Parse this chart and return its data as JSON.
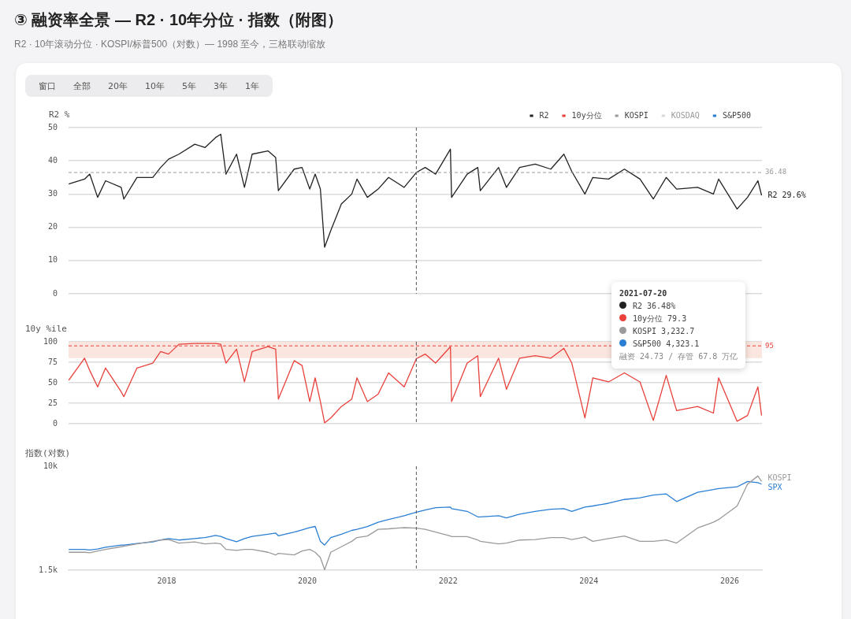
{
  "chart_data": [
    {
      "type": "other",
      "title": "③ 融资率全景 — R2 · 10年分位 · 指数（附图）",
      "subtitle": "R2 · 10年滚动分位 · KOSPI/标普500（对数）— 1998 至今，三格联动缩放",
      "annotations": [
        "窗口",
        "全部",
        "20年",
        "10年",
        "5年",
        "3年",
        "1年"
      ]
    },
    {
      "type": "line",
      "ylabel": "R2 %",
      "x": [
        "2016-08-11",
        "2016-11-01",
        "2016-11-28",
        "2017-01-08",
        "2017-02-18",
        "2017-05-10",
        "2017-05-24",
        "2017-07-31",
        "2017-10-21",
        "2017-12-01",
        "2018-01-11",
        "2018-03-06",
        "2018-05-27",
        "2018-07-20",
        "2018-09-12",
        "2018-10-09",
        "2018-11-05",
        "2018-12-30",
        "2019-02-09",
        "2019-03-21",
        "2019-06-11",
        "2019-07-21",
        "2019-08-04",
        "2019-10-25",
        "2019-12-05",
        "2020-01-14",
        "2020-02-11",
        "2020-03-09",
        "2020-03-31",
        "2020-05-02",
        "2020-06-26",
        "2020-08-19",
        "2020-09-15",
        "2020-11-08",
        "2021-01-03",
        "2021-02-26",
        "2021-05-18",
        "2021-07-20",
        "2021-09-04",
        "2021-10-28",
        "2022-01-13",
        "2022-01-19",
        "2022-04-10",
        "2022-06-04",
        "2022-06-17",
        "2022-09-20",
        "2022-10-31",
        "2023-01-07",
        "2023-03-29",
        "2023-06-18",
        "2023-08-25",
        "2023-10-05",
        "2023-12-12",
        "2024-01-22",
        "2024-04-13",
        "2024-07-04",
        "2024-09-23",
        "2024-12-01",
        "2025-02-06",
        "2025-04-01",
        "2025-07-19",
        "2025-10-09",
        "2025-11-05",
        "2026-02-09",
        "2026-04-04",
        "2026-05-28",
        "2026-06-16"
      ],
      "series": [
        {
          "name": "R2",
          "color": "#222222",
          "values": [
            33,
            34.5,
            36,
            29,
            34,
            32,
            28.5,
            35,
            35,
            38,
            40.5,
            42,
            45,
            44,
            47,
            48,
            36,
            42,
            32,
            42,
            43,
            41,
            31,
            37.5,
            38,
            31.5,
            36,
            31.5,
            14,
            19,
            27,
            30,
            34.5,
            29,
            31.5,
            35,
            32,
            36.48,
            38,
            36,
            43.5,
            29,
            36,
            38,
            31,
            38,
            32,
            38,
            39,
            37.5,
            42,
            36.8,
            30,
            35,
            34.5,
            37.5,
            34.5,
            28.5,
            35,
            31.5,
            32,
            30,
            34.5,
            25.5,
            29,
            34,
            29.6
          ]
        }
      ],
      "xlim": [
        "2016-08-10",
        "2026-06-18"
      ],
      "xticks": [
        "2018",
        "2020",
        "2022",
        "2024",
        "2026"
      ],
      "ylim": [
        0,
        50
      ],
      "yticks": [
        0,
        10,
        20,
        30,
        40,
        50
      ],
      "grid": "y",
      "legend": "top right",
      "line_style": "solid",
      "tick_labels": "y",
      "ref_lines": [
        {
          "axis": "x",
          "value": "2021-07-20",
          "color": "#555555",
          "line_style": "dashed"
        },
        {
          "axis": "y",
          "value": 36.48,
          "label": "36.48",
          "color": "#999999",
          "line_style": "dashed"
        }
      ],
      "annotations": [
        "2021-07-20",
        "R2 36.48%",
        "10y分位 79.3",
        "KOSPI 3,232.7",
        "S&P500 4,323.1",
        "融资 24.73 / 存管 67.8 万亿",
        {
          "text": "R2 29.6%",
          "x": "2026-06-16",
          "y": 29.6
        }
      ]
    },
    {
      "type": "line",
      "ylabel": "10y %ile",
      "x": [
        "2016-08-11",
        "2016-11-01",
        "2016-11-28",
        "2017-01-08",
        "2017-02-18",
        "2017-05-10",
        "2017-05-24",
        "2017-07-31",
        "2017-10-21",
        "2017-12-01",
        "2018-01-11",
        "2018-03-06",
        "2018-05-27",
        "2018-07-20",
        "2018-09-12",
        "2018-10-09",
        "2018-11-05",
        "2018-12-30",
        "2019-02-09",
        "2019-03-21",
        "2019-06-11",
        "2019-07-21",
        "2019-08-04",
        "2019-10-25",
        "2019-12-05",
        "2020-01-14",
        "2020-02-11",
        "2020-03-09",
        "2020-03-31",
        "2020-05-02",
        "2020-06-26",
        "2020-08-19",
        "2020-09-15",
        "2020-11-08",
        "2021-01-03",
        "2021-02-26",
        "2021-05-18",
        "2021-07-20",
        "2021-09-04",
        "2021-10-28",
        "2022-01-13",
        "2022-01-19",
        "2022-04-10",
        "2022-06-04",
        "2022-06-17",
        "2022-09-20",
        "2022-10-31",
        "2023-01-07",
        "2023-03-29",
        "2023-06-18",
        "2023-08-25",
        "2023-10-05",
        "2023-12-12",
        "2024-01-22",
        "2024-04-13",
        "2024-07-04",
        "2024-09-23",
        "2024-12-01",
        "2025-02-06",
        "2025-04-01",
        "2025-07-19",
        "2025-10-09",
        "2025-11-05",
        "2026-02-09",
        "2026-04-04",
        "2026-05-28",
        "2026-06-16"
      ],
      "series": [
        {
          "name": "10y分位",
          "color": "#e8413c",
          "values": [
            53,
            80,
            65,
            45,
            68,
            39,
            33,
            68,
            74,
            88,
            85,
            97,
            98,
            98,
            98,
            97,
            74,
            91,
            51,
            88,
            94,
            91,
            30,
            77,
            71,
            27,
            56,
            27,
            1,
            7,
            21,
            30,
            56,
            27,
            36,
            62,
            45,
            79.3,
            85,
            74,
            94,
            27,
            74,
            83,
            33,
            80,
            42,
            80,
            83,
            80,
            92,
            74,
            7,
            56,
            51,
            62,
            51,
            4,
            59,
            16,
            21,
            13,
            56,
            3,
            10,
            45,
            10
          ]
        }
      ],
      "xlim": [
        "2016-08-10",
        "2026-06-18"
      ],
      "xticks": [
        "2018",
        "2020",
        "2022",
        "2024",
        "2026"
      ],
      "ylim": [
        0,
        100
      ],
      "yticks": [
        0,
        25,
        50,
        75,
        100
      ],
      "grid": "y",
      "line_style": "solid",
      "tick_labels": "y",
      "ref_lines": [
        {
          "axis": "x",
          "value": "2021-07-20",
          "color": "#555555",
          "line_style": "dashed"
        },
        {
          "axis": "y",
          "value": 95,
          "label": "95",
          "color": "#e8413c",
          "line_style": "dashed"
        }
      ],
      "bands": [
        {
          "axis": "y",
          "from": 80,
          "to": 100,
          "color": "#fbe6df"
        }
      ]
    },
    {
      "type": "line",
      "ylabel": "指数(对数)",
      "x": [
        "2016-08-11",
        "2016-11-01",
        "2016-11-28",
        "2017-01-08",
        "2017-02-18",
        "2017-05-10",
        "2017-05-24",
        "2017-07-31",
        "2017-10-21",
        "2017-12-01",
        "2018-01-11",
        "2018-03-06",
        "2018-05-27",
        "2018-07-20",
        "2018-09-12",
        "2018-10-09",
        "2018-11-05",
        "2018-12-30",
        "2019-02-09",
        "2019-03-21",
        "2019-06-11",
        "2019-07-21",
        "2019-08-04",
        "2019-10-25",
        "2019-12-05",
        "2020-01-14",
        "2020-02-11",
        "2020-03-09",
        "2020-03-31",
        "2020-05-02",
        "2020-06-26",
        "2020-08-19",
        "2020-09-15",
        "2020-11-08",
        "2021-01-03",
        "2021-02-26",
        "2021-05-18",
        "2021-07-20",
        "2021-09-04",
        "2021-10-28",
        "2022-01-13",
        "2022-01-19",
        "2022-04-10",
        "2022-06-04",
        "2022-06-17",
        "2022-09-20",
        "2022-10-31",
        "2023-01-07",
        "2023-03-29",
        "2023-06-18",
        "2023-08-25",
        "2023-10-05",
        "2023-12-12",
        "2024-01-22",
        "2024-04-13",
        "2024-07-04",
        "2024-09-23",
        "2024-12-01",
        "2025-02-06",
        "2025-04-01",
        "2025-07-19",
        "2025-10-09",
        "2025-11-05",
        "2026-02-09",
        "2026-04-04",
        "2026-05-28",
        "2026-06-16"
      ],
      "series": [
        {
          "name": "KOSPI",
          "color": "#9a9a9a",
          "values": [
            2080,
            2080,
            2060,
            2130,
            2190,
            2300,
            2320,
            2420,
            2540,
            2600,
            2620,
            2460,
            2510,
            2420,
            2460,
            2420,
            2190,
            2150,
            2190,
            2190,
            2080,
            1980,
            2040,
            1980,
            2130,
            2190,
            2080,
            1890,
            1510,
            2080,
            2300,
            2540,
            2720,
            2800,
            3160,
            3190,
            3260,
            3232.7,
            3160,
            3010,
            2800,
            2770,
            2770,
            2600,
            2540,
            2420,
            2460,
            2600,
            2620,
            2720,
            2720,
            2620,
            2750,
            2540,
            2670,
            2800,
            2540,
            2540,
            2600,
            2460,
            3240,
            3600,
            3780,
            4840,
            7210,
            8370,
            7570
          ]
        },
        {
          "name": "KOSDAQ",
          "color": "#d9d9d9",
          "values": [
            null,
            null,
            null,
            null,
            null,
            null,
            null,
            null,
            null,
            null,
            null,
            null,
            null,
            null,
            null,
            null,
            null,
            null,
            null,
            null,
            null,
            null,
            null,
            null,
            null,
            null,
            null,
            null,
            null,
            null,
            null,
            null,
            null,
            null,
            null,
            null,
            null,
            null,
            null,
            null,
            null,
            null,
            null,
            null,
            null,
            null,
            null,
            null,
            null,
            null,
            null,
            null,
            null,
            null,
            null,
            null,
            null,
            null,
            null,
            null,
            null,
            null,
            null,
            null,
            null,
            null,
            null
          ]
        },
        {
          "name": "S&P500",
          "color": "#2a7fd4",
          "values": [
            2190,
            2190,
            2170,
            2210,
            2280,
            2370,
            2370,
            2440,
            2510,
            2600,
            2670,
            2600,
            2670,
            2720,
            2830,
            2780,
            2670,
            2520,
            2670,
            2780,
            2890,
            2950,
            2810,
            3010,
            3130,
            3260,
            3330,
            2540,
            2370,
            2720,
            2890,
            3100,
            3160,
            3320,
            3600,
            3780,
            4050,
            4323.1,
            4500,
            4700,
            4750,
            4610,
            4390,
            3970,
            3970,
            4050,
            3890,
            4170,
            4390,
            4560,
            4610,
            4390,
            4750,
            4840,
            5090,
            5450,
            5620,
            5910,
            6030,
            5250,
            6210,
            6530,
            6660,
            6860,
            7570,
            7400,
            7210
          ]
        }
      ],
      "xlim": [
        "2016-08-10",
        "2026-06-18"
      ],
      "xticks": [
        "2018",
        "2020",
        "2022",
        "2024",
        "2026"
      ],
      "ylim": [
        1500,
        10000
      ],
      "yticks": [
        {
          "value": 1500,
          "label": "1.5k"
        },
        {
          "value": 10000,
          "label": "10k"
        }
      ],
      "log": true,
      "line_style": "solid",
      "ref_lines": [
        {
          "axis": "x",
          "value": "2021-07-20",
          "color": "#555555",
          "line_style": "dashed"
        }
      ],
      "annotations": [
        "KOSPI",
        "SPX"
      ]
    }
  ]
}
